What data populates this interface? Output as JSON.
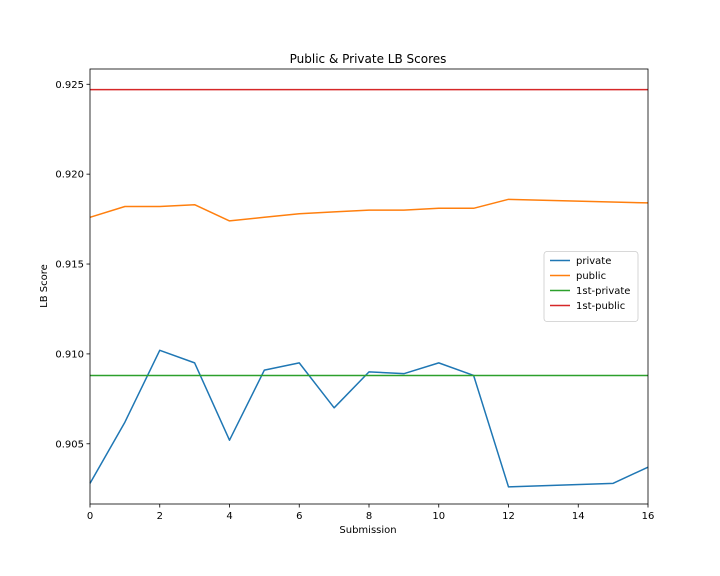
{
  "chart_data": {
    "type": "line",
    "title": "Public & Private LB Scores",
    "xlabel": "Submission",
    "ylabel": "LB Score",
    "xlim": [
      0,
      16
    ],
    "ylim": [
      0.90165,
      0.92585
    ],
    "xticks": [
      0,
      2,
      4,
      6,
      8,
      10,
      12,
      14,
      16
    ],
    "yticks": [
      0.905,
      0.91,
      0.915,
      0.92,
      0.925
    ],
    "ytick_labels": [
      "0.905",
      "0.910",
      "0.915",
      "0.920",
      "0.925"
    ],
    "grid": false,
    "legend_position": "center-right",
    "series": [
      {
        "name": "private",
        "color": "#1f77b4",
        "x": [
          0,
          1,
          2,
          3,
          4,
          5,
          6,
          7,
          8,
          9,
          10,
          11,
          12,
          15,
          16
        ],
        "y": [
          0.9028,
          0.9062,
          0.9102,
          0.9095,
          0.9052,
          0.9091,
          0.9095,
          0.907,
          0.909,
          0.9089,
          0.9095,
          0.9088,
          0.9026,
          0.9028,
          0.9037
        ]
      },
      {
        "name": "public",
        "color": "#ff7f0e",
        "x": [
          0,
          1,
          2,
          3,
          4,
          5,
          6,
          7,
          8,
          9,
          10,
          11,
          12,
          16
        ],
        "y": [
          0.9176,
          0.9182,
          0.9182,
          0.9183,
          0.9174,
          0.9176,
          0.9178,
          0.9179,
          0.918,
          0.918,
          0.9181,
          0.9181,
          0.9186,
          0.9184
        ]
      },
      {
        "name": "1st-private",
        "color": "#2ca02c",
        "x": [
          0,
          16
        ],
        "y": [
          0.9088,
          0.9088
        ]
      },
      {
        "name": "1st-public",
        "color": "#d62728",
        "x": [
          0,
          16
        ],
        "y": [
          0.9247,
          0.9247
        ]
      }
    ]
  }
}
